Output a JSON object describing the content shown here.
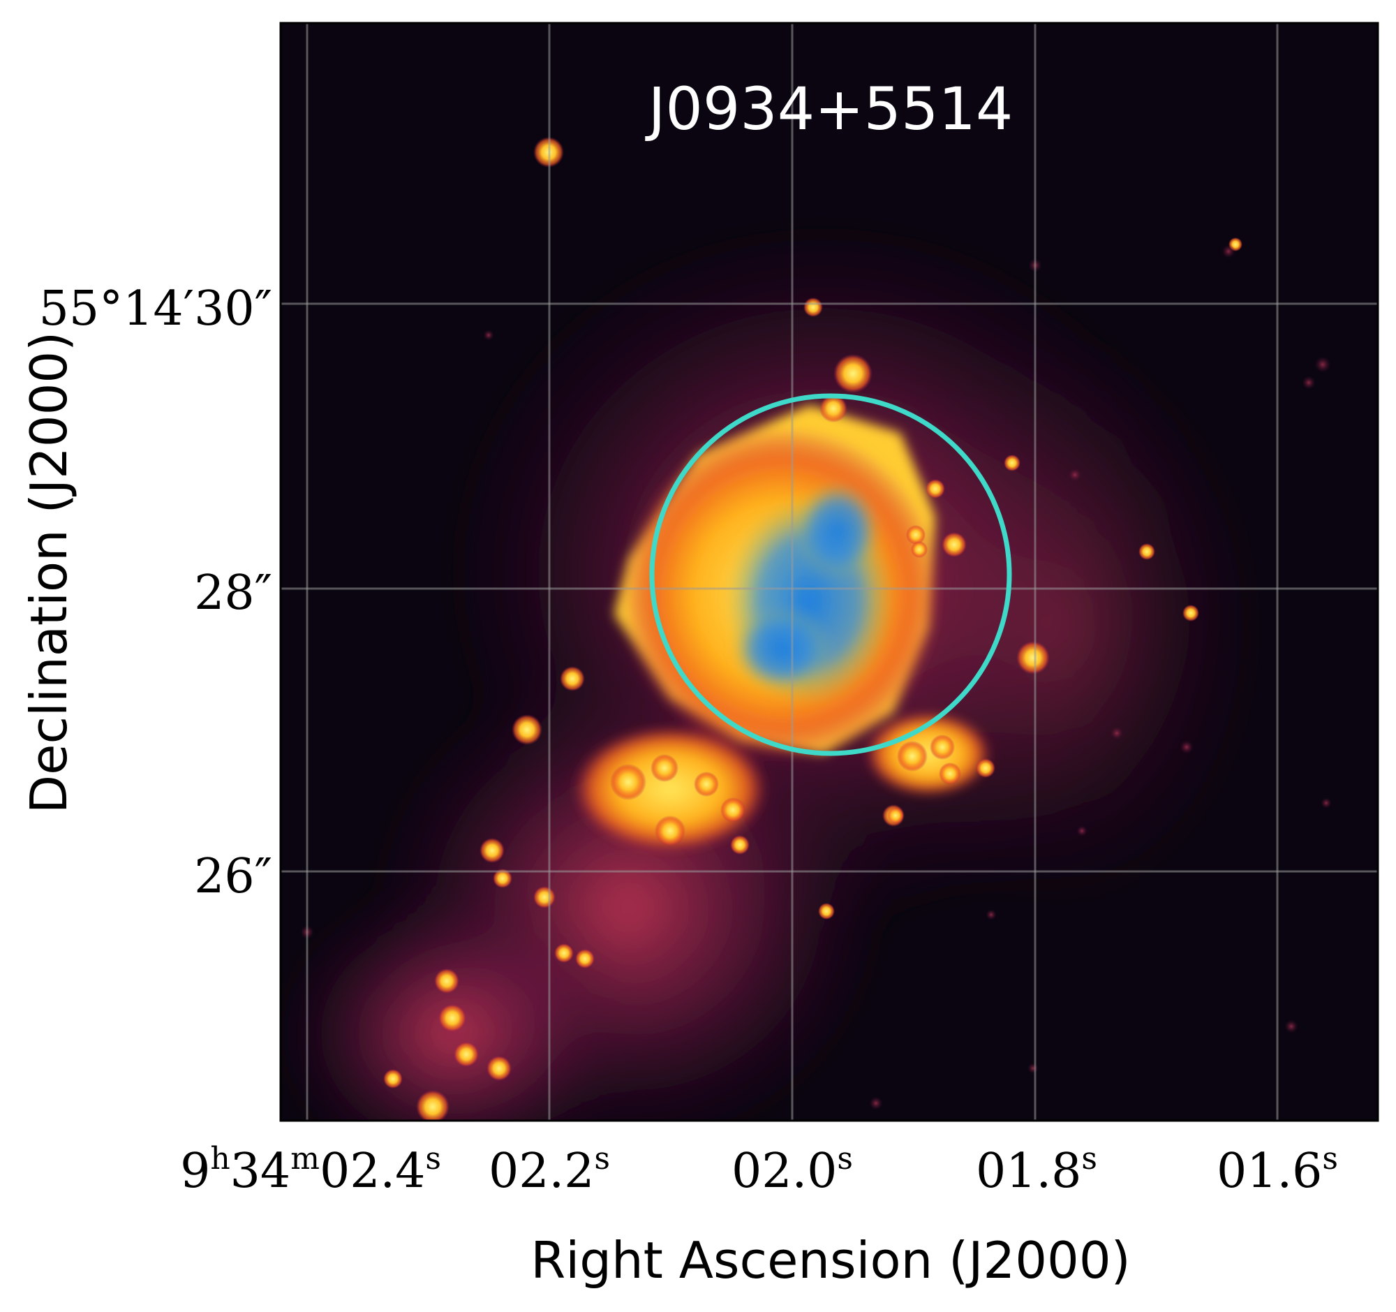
{
  "figure": {
    "title": "J0934+5514",
    "xlabel": "Right Ascension (J2000)",
    "ylabel": "Declination (J2000)",
    "ra_ticks": [
      {
        "main": "9",
        "sup1": "h",
        "mid": "34",
        "sup2": "m",
        "end": "02.4",
        "sup3": "s"
      },
      {
        "main": "02.2",
        "sup": "s"
      },
      {
        "main": "02.0",
        "sup": "s"
      },
      {
        "main": "01.8",
        "sup": "s"
      },
      {
        "main": "01.6",
        "sup": "s"
      }
    ],
    "dec_ticks": [
      {
        "text": "55°14′30″"
      },
      {
        "text": "28″"
      },
      {
        "text": "26″"
      }
    ],
    "colors": {
      "background": "#0a0510",
      "aperture": "#3fd9c9",
      "grid": "#9a9a9a",
      "hot": "#f5e04a",
      "blue": "#1e7fe0"
    },
    "annotations": {
      "aperture_shape": "circle"
    },
    "grid": true
  }
}
